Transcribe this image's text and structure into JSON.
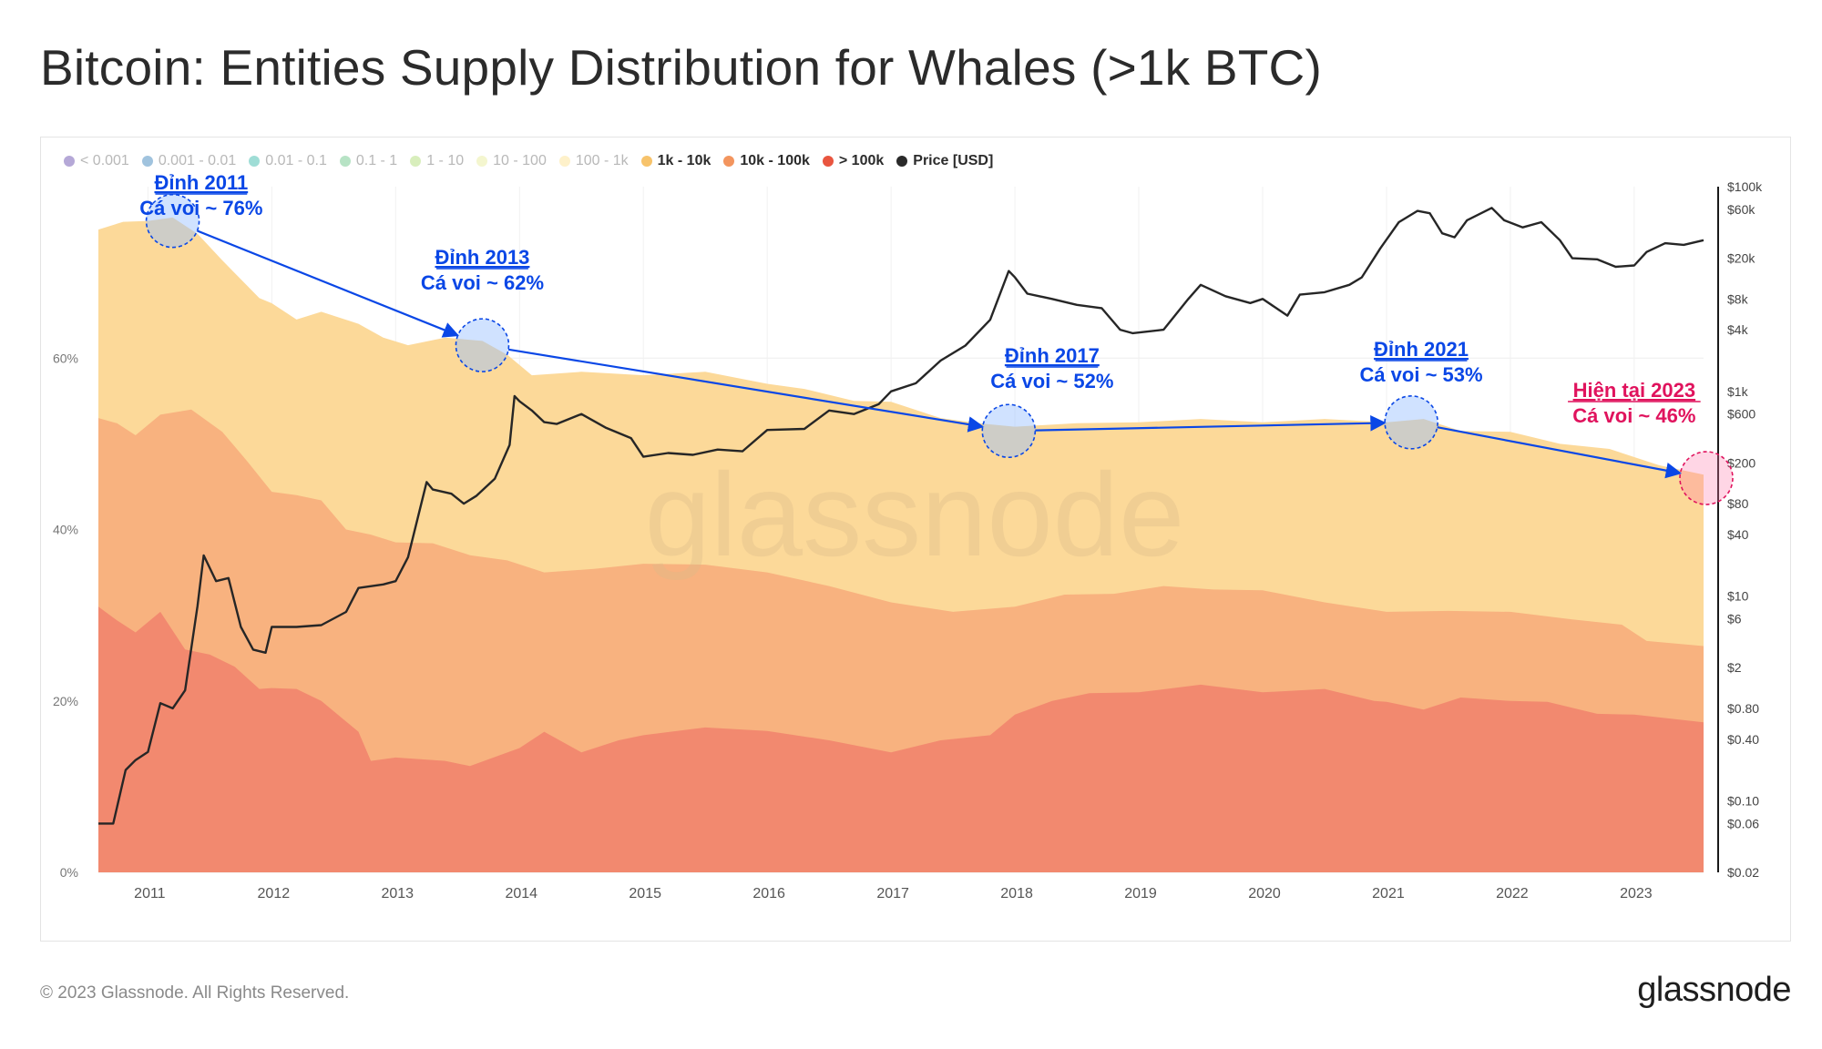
{
  "title": "Bitcoin: Entities Supply Distribution for Whales (>1k BTC)",
  "footer": "© 2023 Glassnode. All Rights Reserved.",
  "logo": "glassnode",
  "watermark": "glassnode",
  "colors": {
    "band_100_1k": "#fcd999",
    "band_1k_10k": "#f8b27f",
    "band_10k_100k": "#f2896f",
    "price": "#262626",
    "annotation_blue": "#0a47e6",
    "annotation_red": "#e0135d"
  },
  "legend": [
    {
      "label": "< 0.001",
      "color": "#5b3ea6",
      "active": false
    },
    {
      "label": "0.001 - 0.01",
      "color": "#2c7bb6",
      "active": false
    },
    {
      "label": "0.01 - 0.1",
      "color": "#2bb3a3",
      "active": false
    },
    {
      "label": "0.1 - 1",
      "color": "#5fc27e",
      "active": false
    },
    {
      "label": "1 - 10",
      "color": "#a8d96a",
      "active": false
    },
    {
      "label": "10 - 100",
      "color": "#e6ea94",
      "active": false
    },
    {
      "label": "100 - 1k",
      "color": "#fce08a",
      "active": false
    },
    {
      "label": "1k - 10k",
      "color": "#f7c36b",
      "active": true
    },
    {
      "label": "10k - 100k",
      "color": "#f3955e",
      "active": true
    },
    {
      "label": "> 100k",
      "color": "#e9553f",
      "active": true
    },
    {
      "label": "Price [USD]",
      "color": "#2a2a2a",
      "active": true
    }
  ],
  "chart_data": {
    "type": "area",
    "title": "Bitcoin: Entities Supply Distribution for Whales (>1k BTC)",
    "x_range": [
      2010.6,
      2023.56
    ],
    "x_ticks": [
      "2011",
      "2012",
      "2013",
      "2014",
      "2015",
      "2016",
      "2017",
      "2018",
      "2019",
      "2020",
      "2021",
      "2022",
      "2023"
    ],
    "y_left_range": [
      0,
      80
    ],
    "y_left_ticks": [
      "0%",
      "20%",
      "40%",
      "60%"
    ],
    "y_right_scale": "log",
    "y_right_range": [
      0.02,
      100000
    ],
    "y_right_ticks": [
      "$100k",
      "$60k",
      "$20k",
      "$8k",
      "$4k",
      "$1k",
      "$600",
      "$200",
      "$80",
      "$40",
      "$10",
      "$6",
      "$2",
      "$0.80",
      "$0.40",
      "$0.10",
      "$0.06",
      "$0.02"
    ],
    "series": [
      {
        "name": "> 100k",
        "unit": "% of supply",
        "points": [
          [
            2010.6,
            31
          ],
          [
            2010.75,
            29
          ],
          [
            2010.9,
            28
          ],
          [
            2011.1,
            30
          ],
          [
            2011.3,
            26
          ],
          [
            2011.5,
            25
          ],
          [
            2011.7,
            24
          ],
          [
            2011.9,
            21
          ],
          [
            2012.0,
            21.5
          ],
          [
            2012.2,
            21
          ],
          [
            2012.4,
            20
          ],
          [
            2012.7,
            16
          ],
          [
            2012.8,
            13
          ],
          [
            2013.0,
            13
          ],
          [
            2013.4,
            13
          ],
          [
            2013.6,
            12
          ],
          [
            2014.0,
            14.5
          ],
          [
            2014.2,
            16
          ],
          [
            2014.5,
            14
          ],
          [
            2014.8,
            15
          ],
          [
            2015.0,
            16
          ],
          [
            2015.5,
            16.5
          ],
          [
            2016.0,
            16.5
          ],
          [
            2016.5,
            15
          ],
          [
            2017.0,
            14
          ],
          [
            2017.4,
            15
          ],
          [
            2017.8,
            16
          ],
          [
            2018.0,
            18
          ],
          [
            2018.3,
            20
          ],
          [
            2018.6,
            20.5
          ],
          [
            2019.0,
            21
          ],
          [
            2019.5,
            21.5
          ],
          [
            2020.0,
            21
          ],
          [
            2020.5,
            21
          ],
          [
            2020.9,
            20
          ],
          [
            2021.0,
            19.5
          ],
          [
            2021.3,
            19
          ],
          [
            2021.6,
            20
          ],
          [
            2022.0,
            20
          ],
          [
            2022.3,
            19.5
          ],
          [
            2022.7,
            18.5
          ],
          [
            2023.0,
            18
          ],
          [
            2023.56,
            17.5
          ]
        ]
      },
      {
        "name": "10k - 100k",
        "unit": "% of supply",
        "points": [
          [
            2010.6,
            53
          ],
          [
            2010.75,
            52
          ],
          [
            2010.9,
            51
          ],
          [
            2011.1,
            53
          ],
          [
            2011.35,
            54
          ],
          [
            2011.6,
            51
          ],
          [
            2011.8,
            48
          ],
          [
            2012.0,
            44
          ],
          [
            2012.2,
            44
          ],
          [
            2012.4,
            43
          ],
          [
            2012.6,
            40
          ],
          [
            2012.8,
            39
          ],
          [
            2013.0,
            38.5
          ],
          [
            2013.3,
            38
          ],
          [
            2013.6,
            37
          ],
          [
            2013.9,
            36
          ],
          [
            2014.2,
            35
          ],
          [
            2014.6,
            35
          ],
          [
            2015.0,
            36
          ],
          [
            2015.5,
            35.5
          ],
          [
            2016.0,
            35
          ],
          [
            2016.5,
            33
          ],
          [
            2017.0,
            31.5
          ],
          [
            2017.5,
            30
          ],
          [
            2018.0,
            31
          ],
          [
            2018.4,
            32
          ],
          [
            2018.8,
            32.5
          ],
          [
            2019.2,
            33
          ],
          [
            2019.6,
            33
          ],
          [
            2020.0,
            32.5
          ],
          [
            2020.5,
            31.5
          ],
          [
            2021.0,
            30
          ],
          [
            2021.5,
            30.5
          ],
          [
            2022.0,
            30
          ],
          [
            2022.5,
            29.5
          ],
          [
            2022.9,
            28.5
          ],
          [
            2023.1,
            27
          ],
          [
            2023.56,
            26
          ]
        ]
      },
      {
        "name": "1k - 10k",
        "unit": "% of supply",
        "points": [
          [
            2010.6,
            75
          ],
          [
            2010.8,
            75.5
          ],
          [
            2011.0,
            76
          ],
          [
            2011.2,
            76
          ],
          [
            2011.4,
            74.5
          ],
          [
            2011.6,
            71
          ],
          [
            2011.9,
            67
          ],
          [
            2012.0,
            66
          ],
          [
            2012.2,
            64.5
          ],
          [
            2012.4,
            65
          ],
          [
            2012.7,
            64
          ],
          [
            2012.9,
            62
          ],
          [
            2013.1,
            61.5
          ],
          [
            2013.4,
            62
          ],
          [
            2013.7,
            62
          ],
          [
            2013.9,
            60
          ],
          [
            2014.1,
            58
          ],
          [
            2014.5,
            58
          ],
          [
            2015.0,
            58
          ],
          [
            2015.5,
            58
          ],
          [
            2016.0,
            57
          ],
          [
            2016.3,
            56
          ],
          [
            2016.7,
            55
          ],
          [
            2017.0,
            54.5
          ],
          [
            2017.4,
            53
          ],
          [
            2017.7,
            52
          ],
          [
            2018.0,
            52
          ],
          [
            2018.5,
            52
          ],
          [
            2019.0,
            52.5
          ],
          [
            2019.5,
            52.5
          ],
          [
            2020.0,
            52.5
          ],
          [
            2020.5,
            52.5
          ],
          [
            2021.0,
            52.5
          ],
          [
            2021.3,
            52.5
          ],
          [
            2021.6,
            51.5
          ],
          [
            2022.0,
            51
          ],
          [
            2022.4,
            50
          ],
          [
            2022.8,
            49
          ],
          [
            2023.2,
            47.5
          ],
          [
            2023.56,
            46
          ]
        ]
      },
      {
        "name": "Price [USD]",
        "unit": "USD (log)",
        "points": [
          [
            2010.6,
            0.06
          ],
          [
            2010.72,
            0.06
          ],
          [
            2010.82,
            0.2
          ],
          [
            2010.9,
            0.25
          ],
          [
            2011.0,
            0.3
          ],
          [
            2011.1,
            0.9
          ],
          [
            2011.2,
            0.8
          ],
          [
            2011.3,
            1.2
          ],
          [
            2011.4,
            8
          ],
          [
            2011.45,
            25
          ],
          [
            2011.55,
            14
          ],
          [
            2011.65,
            15
          ],
          [
            2011.75,
            5
          ],
          [
            2011.85,
            3
          ],
          [
            2011.95,
            2.8
          ],
          [
            2012.0,
            5
          ],
          [
            2012.2,
            5
          ],
          [
            2012.4,
            5.2
          ],
          [
            2012.6,
            7
          ],
          [
            2012.7,
            12
          ],
          [
            2012.9,
            13
          ],
          [
            2013.0,
            14
          ],
          [
            2013.1,
            24
          ],
          [
            2013.25,
            130
          ],
          [
            2013.3,
            110
          ],
          [
            2013.45,
            100
          ],
          [
            2013.55,
            80
          ],
          [
            2013.65,
            95
          ],
          [
            2013.8,
            140
          ],
          [
            2013.92,
            300
          ],
          [
            2013.96,
            900
          ],
          [
            2014.0,
            800
          ],
          [
            2014.1,
            650
          ],
          [
            2014.2,
            500
          ],
          [
            2014.3,
            480
          ],
          [
            2014.5,
            600
          ],
          [
            2014.7,
            440
          ],
          [
            2014.9,
            350
          ],
          [
            2015.0,
            230
          ],
          [
            2015.2,
            250
          ],
          [
            2015.4,
            240
          ],
          [
            2015.6,
            270
          ],
          [
            2015.8,
            260
          ],
          [
            2016.0,
            420
          ],
          [
            2016.3,
            430
          ],
          [
            2016.5,
            650
          ],
          [
            2016.7,
            600
          ],
          [
            2016.9,
            750
          ],
          [
            2017.0,
            1000
          ],
          [
            2017.2,
            1200
          ],
          [
            2017.4,
            2000
          ],
          [
            2017.6,
            2800
          ],
          [
            2017.8,
            5000
          ],
          [
            2017.95,
            15000
          ],
          [
            2018.0,
            13000
          ],
          [
            2018.1,
            9000
          ],
          [
            2018.3,
            8000
          ],
          [
            2018.5,
            7000
          ],
          [
            2018.7,
            6500
          ],
          [
            2018.85,
            4000
          ],
          [
            2018.95,
            3700
          ],
          [
            2019.2,
            4000
          ],
          [
            2019.4,
            8000
          ],
          [
            2019.5,
            11000
          ],
          [
            2019.7,
            8500
          ],
          [
            2019.9,
            7300
          ],
          [
            2020.0,
            8000
          ],
          [
            2020.2,
            5500
          ],
          [
            2020.3,
            8800
          ],
          [
            2020.5,
            9300
          ],
          [
            2020.7,
            11000
          ],
          [
            2020.8,
            13000
          ],
          [
            2020.95,
            25000
          ],
          [
            2021.1,
            45000
          ],
          [
            2021.25,
            58000
          ],
          [
            2021.35,
            55000
          ],
          [
            2021.45,
            35000
          ],
          [
            2021.55,
            32000
          ],
          [
            2021.65,
            47000
          ],
          [
            2021.85,
            62000
          ],
          [
            2021.95,
            47000
          ],
          [
            2022.1,
            40000
          ],
          [
            2022.25,
            45000
          ],
          [
            2022.4,
            30000
          ],
          [
            2022.5,
            20000
          ],
          [
            2022.7,
            19500
          ],
          [
            2022.85,
            16500
          ],
          [
            2023.0,
            17000
          ],
          [
            2023.1,
            23000
          ],
          [
            2023.25,
            28000
          ],
          [
            2023.4,
            27000
          ],
          [
            2023.56,
            30000
          ]
        ]
      }
    ]
  },
  "annotations": [
    {
      "id": "peak-2011",
      "title": "Đỉnh 2011",
      "subtitle": "Cá voi ~ 76%"
    },
    {
      "id": "peak-2013",
      "title": "Đỉnh 2013",
      "subtitle": "Cá voi ~ 62%"
    },
    {
      "id": "peak-2017",
      "title": "Đỉnh 2017",
      "subtitle": "Cá voi ~ 52%"
    },
    {
      "id": "peak-2021",
      "title": "Đỉnh 2021",
      "subtitle": "Cá voi ~ 53%"
    },
    {
      "id": "now-2023",
      "title": "Hiện tại 2023",
      "subtitle": "Cá voi ~ 46%"
    }
  ]
}
